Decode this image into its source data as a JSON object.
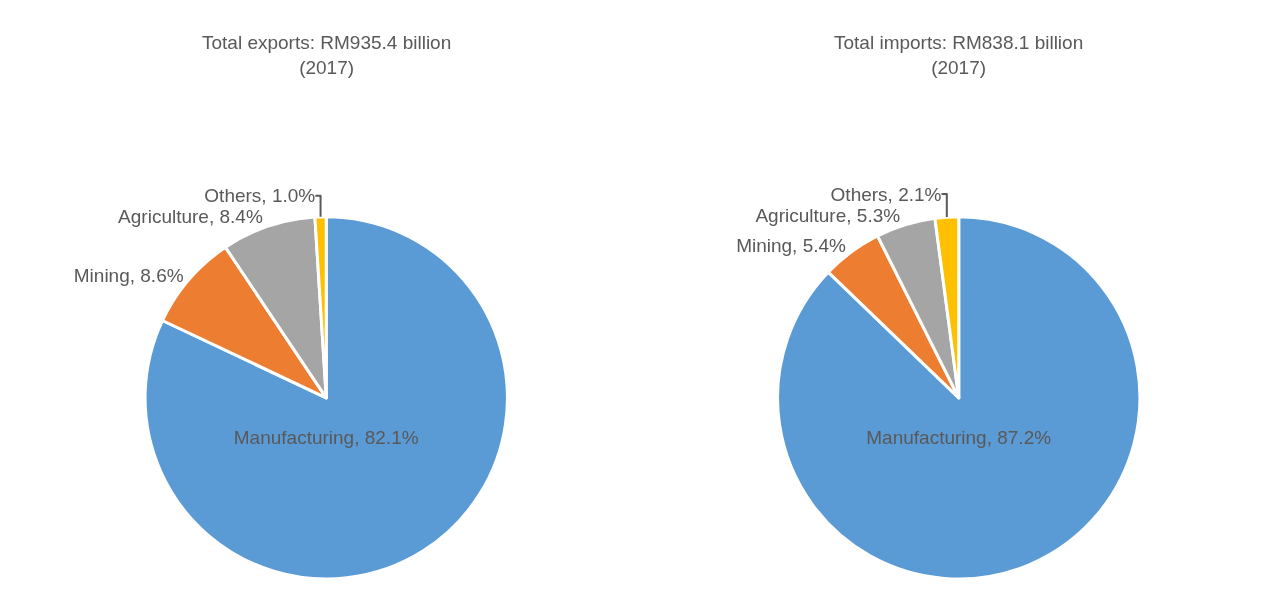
{
  "chart_data": [
    {
      "type": "pie",
      "title": "Total exports: RM935.4 billion (2017)",
      "categories": [
        "Manufacturing",
        "Mining",
        "Agriculture",
        "Others"
      ],
      "values": [
        82.1,
        8.6,
        8.4,
        1.0
      ],
      "value_labels": [
        "82.1%",
        "8.6%",
        "8.4%",
        "1.0%"
      ],
      "colors": [
        "#5b9bd5",
        "#ed7d31",
        "#a5a5a5",
        "#ffc000"
      ],
      "legend": false
    },
    {
      "type": "pie",
      "title": "Total imports: RM838.1 billion (2017)",
      "categories": [
        "Manufacturing",
        "Mining",
        "Agriculture",
        "Others"
      ],
      "values": [
        87.2,
        5.4,
        5.3,
        2.1
      ],
      "value_labels": [
        "87.2%",
        "5.4%",
        "5.3%",
        "2.1%"
      ],
      "colors": [
        "#5b9bd5",
        "#ed7d31",
        "#a5a5a5",
        "#ffc000"
      ],
      "legend": false
    }
  ]
}
